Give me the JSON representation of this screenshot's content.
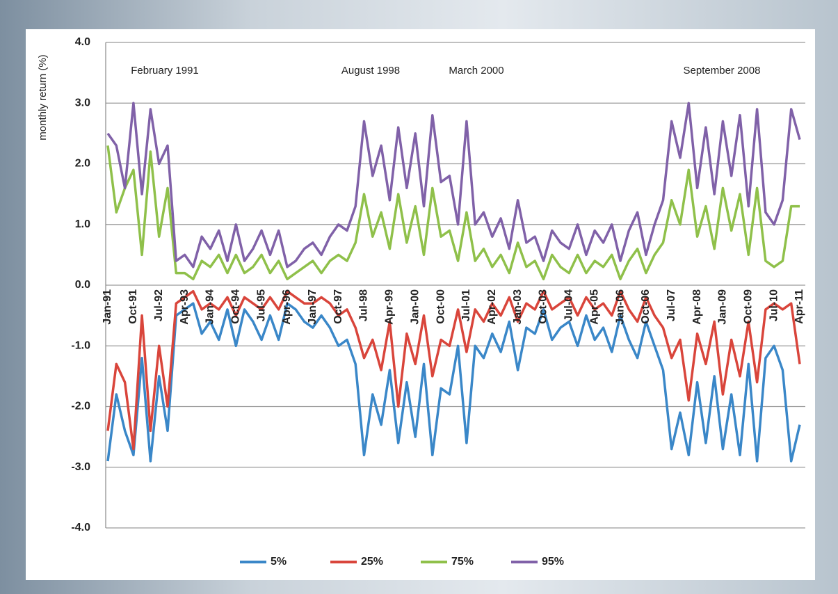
{
  "chart_data": {
    "type": "line",
    "y_label": "monthly return (%)",
    "annotations": [
      "February 1991",
      "August 1998",
      "March 2000",
      "September 2008"
    ],
    "categories": [
      "Jan-91",
      null,
      null,
      "Oct-91",
      null,
      null,
      "Jul-92",
      null,
      null,
      "Apr-93",
      null,
      null,
      "Jan-94",
      null,
      null,
      "Oct-94",
      null,
      null,
      "Jul-95",
      null,
      null,
      "Apr-96",
      null,
      null,
      "Jan-97",
      null,
      null,
      "Oct-97",
      null,
      null,
      "Jul-98",
      null,
      null,
      "Apr-99",
      null,
      null,
      "Jan-00",
      null,
      null,
      "Oct-00",
      null,
      null,
      "Jul-01",
      null,
      null,
      "Apr-02",
      null,
      null,
      "Jan-03",
      null,
      null,
      "Oct-03",
      null,
      null,
      "Jul-04",
      null,
      null,
      "Apr-05",
      null,
      null,
      "Jan-06",
      null,
      null,
      "Oct-06",
      null,
      null,
      "Jul-07",
      null,
      null,
      "Apr-08",
      null,
      null,
      "Jan-09",
      null,
      null,
      "Oct-09",
      null,
      null,
      "Jul-10",
      null,
      null,
      "Apr-11"
    ],
    "series": [
      {
        "name": "5%",
        "color": "#3a87c8",
        "values": [
          -2.9,
          -1.8,
          -2.4,
          -2.8,
          -1.2,
          -2.9,
          -1.5,
          -2.4,
          -0.5,
          -0.4,
          -0.3,
          -0.8,
          -0.6,
          -0.9,
          -0.4,
          -1.0,
          -0.4,
          -0.6,
          -0.9,
          -0.5,
          -0.9,
          -0.3,
          -0.4,
          -0.6,
          -0.7,
          -0.5,
          -0.7,
          -1.0,
          -0.9,
          -1.3,
          -2.8,
          -1.8,
          -2.3,
          -1.4,
          -2.6,
          -1.6,
          -2.5,
          -1.3,
          -2.8,
          -1.7,
          -1.8,
          -1.0,
          -2.6,
          -1.0,
          -1.2,
          -0.8,
          -1.1,
          -0.6,
          -1.4,
          -0.7,
          -0.8,
          -0.4,
          -0.9,
          -0.7,
          -0.6,
          -1.0,
          -0.5,
          -0.9,
          -0.7,
          -1.1,
          -0.5,
          -0.9,
          -1.2,
          -0.6,
          -1.0,
          -1.4,
          -2.7,
          -2.1,
          -2.8,
          -1.6,
          -2.6,
          -1.5,
          -2.7,
          -1.8,
          -2.8,
          -1.3,
          -2.9,
          -1.2,
          -1.0,
          -1.4,
          -2.9,
          -2.3
        ]
      },
      {
        "name": "25%",
        "color": "#d9453b",
        "values": [
          -2.4,
          -1.3,
          -1.6,
          -2.7,
          -0.5,
          -2.4,
          -1.0,
          -2.0,
          -0.3,
          -0.2,
          -0.1,
          -0.4,
          -0.3,
          -0.4,
          -0.2,
          -0.5,
          -0.2,
          -0.3,
          -0.4,
          -0.2,
          -0.4,
          -0.1,
          -0.2,
          -0.3,
          -0.3,
          -0.2,
          -0.3,
          -0.5,
          -0.4,
          -0.7,
          -1.2,
          -0.9,
          -1.4,
          -0.6,
          -2.0,
          -0.8,
          -1.3,
          -0.5,
          -1.5,
          -0.9,
          -1.0,
          -0.4,
          -1.1,
          -0.4,
          -0.6,
          -0.3,
          -0.5,
          -0.2,
          -0.6,
          -0.3,
          -0.4,
          -0.1,
          -0.4,
          -0.3,
          -0.2,
          -0.5,
          -0.2,
          -0.4,
          -0.3,
          -0.5,
          -0.1,
          -0.4,
          -0.6,
          -0.2,
          -0.5,
          -0.7,
          -1.2,
          -0.9,
          -1.9,
          -0.8,
          -1.3,
          -0.6,
          -1.8,
          -0.9,
          -1.5,
          -0.6,
          -1.6,
          -0.4,
          -0.3,
          -0.4,
          -0.3,
          -1.3
        ]
      },
      {
        "name": "75%",
        "color": "#8fc04a",
        "values": [
          2.3,
          1.2,
          1.6,
          1.9,
          0.5,
          2.2,
          0.8,
          1.6,
          0.2,
          0.2,
          0.1,
          0.4,
          0.3,
          0.5,
          0.2,
          0.5,
          0.2,
          0.3,
          0.5,
          0.2,
          0.4,
          0.1,
          0.2,
          0.3,
          0.4,
          0.2,
          0.4,
          0.5,
          0.4,
          0.7,
          1.5,
          0.8,
          1.2,
          0.6,
          1.5,
          0.7,
          1.3,
          0.5,
          1.6,
          0.8,
          0.9,
          0.4,
          1.2,
          0.4,
          0.6,
          0.3,
          0.5,
          0.2,
          0.7,
          0.3,
          0.4,
          0.1,
          0.5,
          0.3,
          0.2,
          0.5,
          0.2,
          0.4,
          0.3,
          0.5,
          0.1,
          0.4,
          0.6,
          0.2,
          0.5,
          0.7,
          1.4,
          1.0,
          1.9,
          0.8,
          1.3,
          0.6,
          1.6,
          0.9,
          1.5,
          0.5,
          1.6,
          0.4,
          0.3,
          0.4,
          1.3,
          1.3
        ]
      },
      {
        "name": "95%",
        "color": "#8061a8",
        "values": [
          2.5,
          2.3,
          1.6,
          3.0,
          1.5,
          2.9,
          2.0,
          2.3,
          0.4,
          0.5,
          0.3,
          0.8,
          0.6,
          0.9,
          0.4,
          1.0,
          0.4,
          0.6,
          0.9,
          0.5,
          0.9,
          0.3,
          0.4,
          0.6,
          0.7,
          0.5,
          0.8,
          1.0,
          0.9,
          1.3,
          2.7,
          1.8,
          2.3,
          1.4,
          2.6,
          1.6,
          2.5,
          1.3,
          2.8,
          1.7,
          1.8,
          1.0,
          2.7,
          1.0,
          1.2,
          0.8,
          1.1,
          0.6,
          1.4,
          0.7,
          0.8,
          0.4,
          0.9,
          0.7,
          0.6,
          1.0,
          0.5,
          0.9,
          0.7,
          1.0,
          0.4,
          0.9,
          1.2,
          0.5,
          1.0,
          1.4,
          2.7,
          2.1,
          3.0,
          1.6,
          2.6,
          1.5,
          2.7,
          1.8,
          2.8,
          1.3,
          2.9,
          1.2,
          1.0,
          1.4,
          2.9,
          2.4
        ]
      }
    ],
    "ylim": [
      -4,
      4
    ],
    "yticks": [
      {
        "value": -4,
        "label": "-4.0"
      },
      {
        "value": -3,
        "label": "-3.0"
      },
      {
        "value": -2,
        "label": "-2.0"
      },
      {
        "value": -1,
        "label": "-1.0"
      },
      {
        "value": 0,
        "label": "0.0"
      },
      {
        "value": 1,
        "label": "1.0"
      },
      {
        "value": 2,
        "label": "2.0"
      },
      {
        "value": 3,
        "label": "3.0"
      },
      {
        "value": 4,
        "label": "4.0"
      }
    ],
    "grid": true,
    "legend": "bottom"
  }
}
